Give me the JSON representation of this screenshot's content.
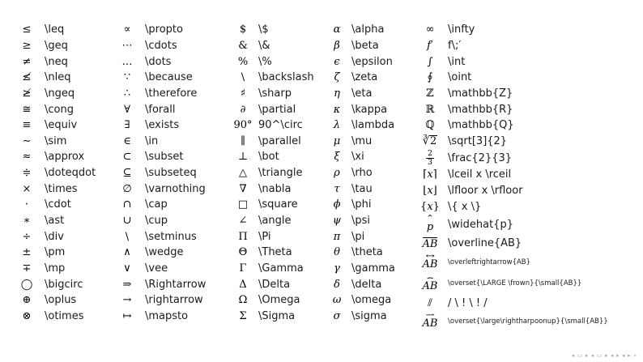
{
  "page": {
    "background": "#ffffff",
    "text_color": "#1a1a1a",
    "symbol_color": "#000000",
    "nav_color": "#a8a8c8"
  },
  "columns": [
    {
      "name": "relations-operators",
      "rows": [
        {
          "sym": "≤",
          "cmd": "\\leq"
        },
        {
          "sym": "≥",
          "cmd": "\\geq"
        },
        {
          "sym": "≠",
          "cmd": "\\neq"
        },
        {
          "sym": "≰",
          "cmd": "\\nleq"
        },
        {
          "sym": "≱",
          "cmd": "\\ngeq"
        },
        {
          "sym": "≅",
          "cmd": "\\cong"
        },
        {
          "sym": "≡",
          "cmd": "\\equiv"
        },
        {
          "sym": "∼",
          "cmd": "\\sim"
        },
        {
          "sym": "≈",
          "cmd": "\\approx"
        },
        {
          "sym": "≑",
          "cmd": "\\doteqdot"
        },
        {
          "sym": "×",
          "cmd": "\\times"
        },
        {
          "sym": "·",
          "cmd": "\\cdot"
        },
        {
          "sym": "∗",
          "cmd": "\\ast"
        },
        {
          "sym": "÷",
          "cmd": "\\div"
        },
        {
          "sym": "±",
          "cmd": "\\pm"
        },
        {
          "sym": "∓",
          "cmd": "\\mp"
        },
        {
          "sym": "◯",
          "cmd": "\\bigcirc"
        },
        {
          "sym": "⊕",
          "cmd": "\\oplus"
        },
        {
          "sym": "⊗",
          "cmd": "\\otimes"
        }
      ]
    },
    {
      "name": "logic-sets-arrows",
      "rows": [
        {
          "sym": "∝",
          "cmd": "\\propto"
        },
        {
          "sym": "⋯",
          "cmd": "\\cdots"
        },
        {
          "sym": "…",
          "cmd": "\\dots"
        },
        {
          "sym": "∵",
          "cmd": "\\because"
        },
        {
          "sym": "∴",
          "cmd": "\\therefore"
        },
        {
          "sym": "∀",
          "cmd": "\\forall"
        },
        {
          "sym": "∃",
          "cmd": "\\exists"
        },
        {
          "sym": "∈",
          "cmd": "\\in"
        },
        {
          "sym": "⊂",
          "cmd": "\\subset"
        },
        {
          "sym": "⊆",
          "cmd": "\\subseteq"
        },
        {
          "sym": "∅",
          "cmd": "\\varnothing"
        },
        {
          "sym": "∩",
          "cmd": "\\cap"
        },
        {
          "sym": "∪",
          "cmd": "\\cup"
        },
        {
          "sym": "\\",
          "cmd": "\\setminus"
        },
        {
          "sym": "∧",
          "cmd": "\\wedge"
        },
        {
          "sym": "∨",
          "cmd": "\\vee"
        },
        {
          "sym": "⇒",
          "cmd": "\\Rightarrow"
        },
        {
          "sym": "→",
          "cmd": "\\rightarrow"
        },
        {
          "sym": "↦",
          "cmd": "\\mapsto"
        }
      ]
    },
    {
      "name": "misc-capital-greek",
      "rows": [
        {
          "sym": "$",
          "cmd": "\\$"
        },
        {
          "sym": "&",
          "cmd": "\\&"
        },
        {
          "sym": "%",
          "cmd": "\\%"
        },
        {
          "sym": "\\",
          "cmd": "\\backslash"
        },
        {
          "sym": "♯",
          "cmd": "\\sharp"
        },
        {
          "sym": "∂",
          "cmd": "\\partial",
          "italic": true
        },
        {
          "sym": "90°",
          "cmd": "90^\\circ"
        },
        {
          "sym": "∥",
          "cmd": "\\parallel"
        },
        {
          "sym": "⊥",
          "cmd": "\\bot"
        },
        {
          "sym": "△",
          "cmd": "\\triangle"
        },
        {
          "sym": "∇",
          "cmd": "\\nabla"
        },
        {
          "sym": "□",
          "cmd": "\\square"
        },
        {
          "sym": "∠",
          "cmd": "\\angle"
        },
        {
          "sym": "Π",
          "cmd": "\\Pi"
        },
        {
          "sym": "Θ",
          "cmd": "\\Theta"
        },
        {
          "sym": "Γ",
          "cmd": "\\Gamma"
        },
        {
          "sym": "Δ",
          "cmd": "\\Delta"
        },
        {
          "sym": "Ω",
          "cmd": "\\Omega"
        },
        {
          "sym": "Σ",
          "cmd": "\\Sigma"
        }
      ]
    },
    {
      "name": "lowercase-greek",
      "rows": [
        {
          "sym": "α",
          "cmd": "\\alpha",
          "italic": true
        },
        {
          "sym": "β",
          "cmd": "\\beta",
          "italic": true
        },
        {
          "sym": "ϵ",
          "cmd": "\\epsilon",
          "italic": true
        },
        {
          "sym": "ζ",
          "cmd": "\\zeta",
          "italic": true
        },
        {
          "sym": "η",
          "cmd": "\\eta",
          "italic": true
        },
        {
          "sym": "κ",
          "cmd": "\\kappa",
          "italic": true
        },
        {
          "sym": "λ",
          "cmd": "\\lambda",
          "italic": true
        },
        {
          "sym": "μ",
          "cmd": "\\mu",
          "italic": true
        },
        {
          "sym": "ξ",
          "cmd": "\\xi",
          "italic": true
        },
        {
          "sym": "ρ",
          "cmd": "\\rho",
          "italic": true
        },
        {
          "sym": "τ",
          "cmd": "\\tau",
          "italic": true
        },
        {
          "sym": "ϕ",
          "cmd": "\\phi",
          "italic": true
        },
        {
          "sym": "ψ",
          "cmd": "\\psi",
          "italic": true
        },
        {
          "sym": "π",
          "cmd": "\\pi",
          "italic": true
        },
        {
          "sym": "θ",
          "cmd": "\\theta",
          "italic": true
        },
        {
          "sym": "γ",
          "cmd": "\\gamma",
          "italic": true
        },
        {
          "sym": "δ",
          "cmd": "\\delta",
          "italic": true
        },
        {
          "sym": "ω",
          "cmd": "\\omega",
          "italic": true
        },
        {
          "sym": "σ",
          "cmd": "\\sigma",
          "italic": true
        }
      ]
    },
    {
      "name": "constructs",
      "rows": [
        {
          "sym": "∞",
          "cmd": "\\infty"
        },
        {
          "kind": "bracket",
          "pre": "",
          "var": "f",
          "post": " ′",
          "cmd": "f\\;′"
        },
        {
          "sym": "∫",
          "cmd": "\\int"
        },
        {
          "sym": "∮",
          "cmd": "\\oint"
        },
        {
          "sym": "ℤ",
          "cmd": "\\mathbb{Z}"
        },
        {
          "sym": "ℝ",
          "cmd": "\\mathbb{R}"
        },
        {
          "sym": "ℚ",
          "cmd": "\\mathbb{Q}"
        },
        {
          "kind": "root",
          "radical": "∛",
          "base": "2",
          "cmd": "\\sqrt[3]{2}"
        },
        {
          "kind": "frac",
          "num": "2",
          "den": "3",
          "cmd": "\\frac{2}{3}"
        },
        {
          "kind": "bracket",
          "pre": "⌈",
          "var": "x",
          "post": "⌉",
          "cmd": "\\lceil x \\rceil"
        },
        {
          "kind": "bracket",
          "pre": "⌊",
          "var": "x",
          "post": "⌋",
          "cmd": "\\lfloor x \\rfloor"
        },
        {
          "kind": "bracket",
          "pre": "{",
          "var": "x",
          "post": "}",
          "cmd": "\\{ x \\}"
        },
        {
          "kind": "over",
          "accent": "ˆ",
          "hat": true,
          "base": "p",
          "cmd": "\\widehat{p}"
        },
        {
          "kind": "overline",
          "base": "AB",
          "cmd": "\\overline{AB}"
        },
        {
          "kind": "over",
          "accent": "↔",
          "base": "AB",
          "cmd": "\\overleftrightarrow{AB}",
          "small": true
        },
        {
          "kind": "over",
          "accent": "⌢",
          "tall": true,
          "base": "AB",
          "cmd": "\\overset{\\LARGE \\frown}{\\small{AB}}",
          "small": true
        },
        {
          "kind": "plain2",
          "sym": "⫽",
          "cmd": "/ \\ ! \\ ! /"
        },
        {
          "kind": "over",
          "accent": "⇀",
          "base": "AB",
          "cmd": "\\overset{\\large\\rightharpoonup}{\\small{AB}}",
          "small": true
        }
      ]
    }
  ],
  "nav": {
    "icons": [
      {
        "glyph": "◂",
        "name": "nav-slide-back"
      },
      {
        "glyph": "▭",
        "name": "nav-slide-box"
      },
      {
        "glyph": "▸",
        "name": "nav-slide-forward"
      },
      {
        "glyph": "◂",
        "name": "nav-frame-back"
      },
      {
        "glyph": "▭",
        "name": "nav-frame-box"
      },
      {
        "glyph": "▸",
        "name": "nav-frame-forward"
      },
      {
        "glyph": "◂",
        "name": "nav-section-back"
      },
      {
        "glyph": "▸",
        "name": "nav-section-forward"
      },
      {
        "glyph": "◂",
        "name": "nav-appendix-back"
      },
      {
        "glyph": "▸",
        "name": "nav-appendix-forward"
      },
      {
        "glyph": "⌕",
        "name": "nav-search"
      }
    ]
  }
}
